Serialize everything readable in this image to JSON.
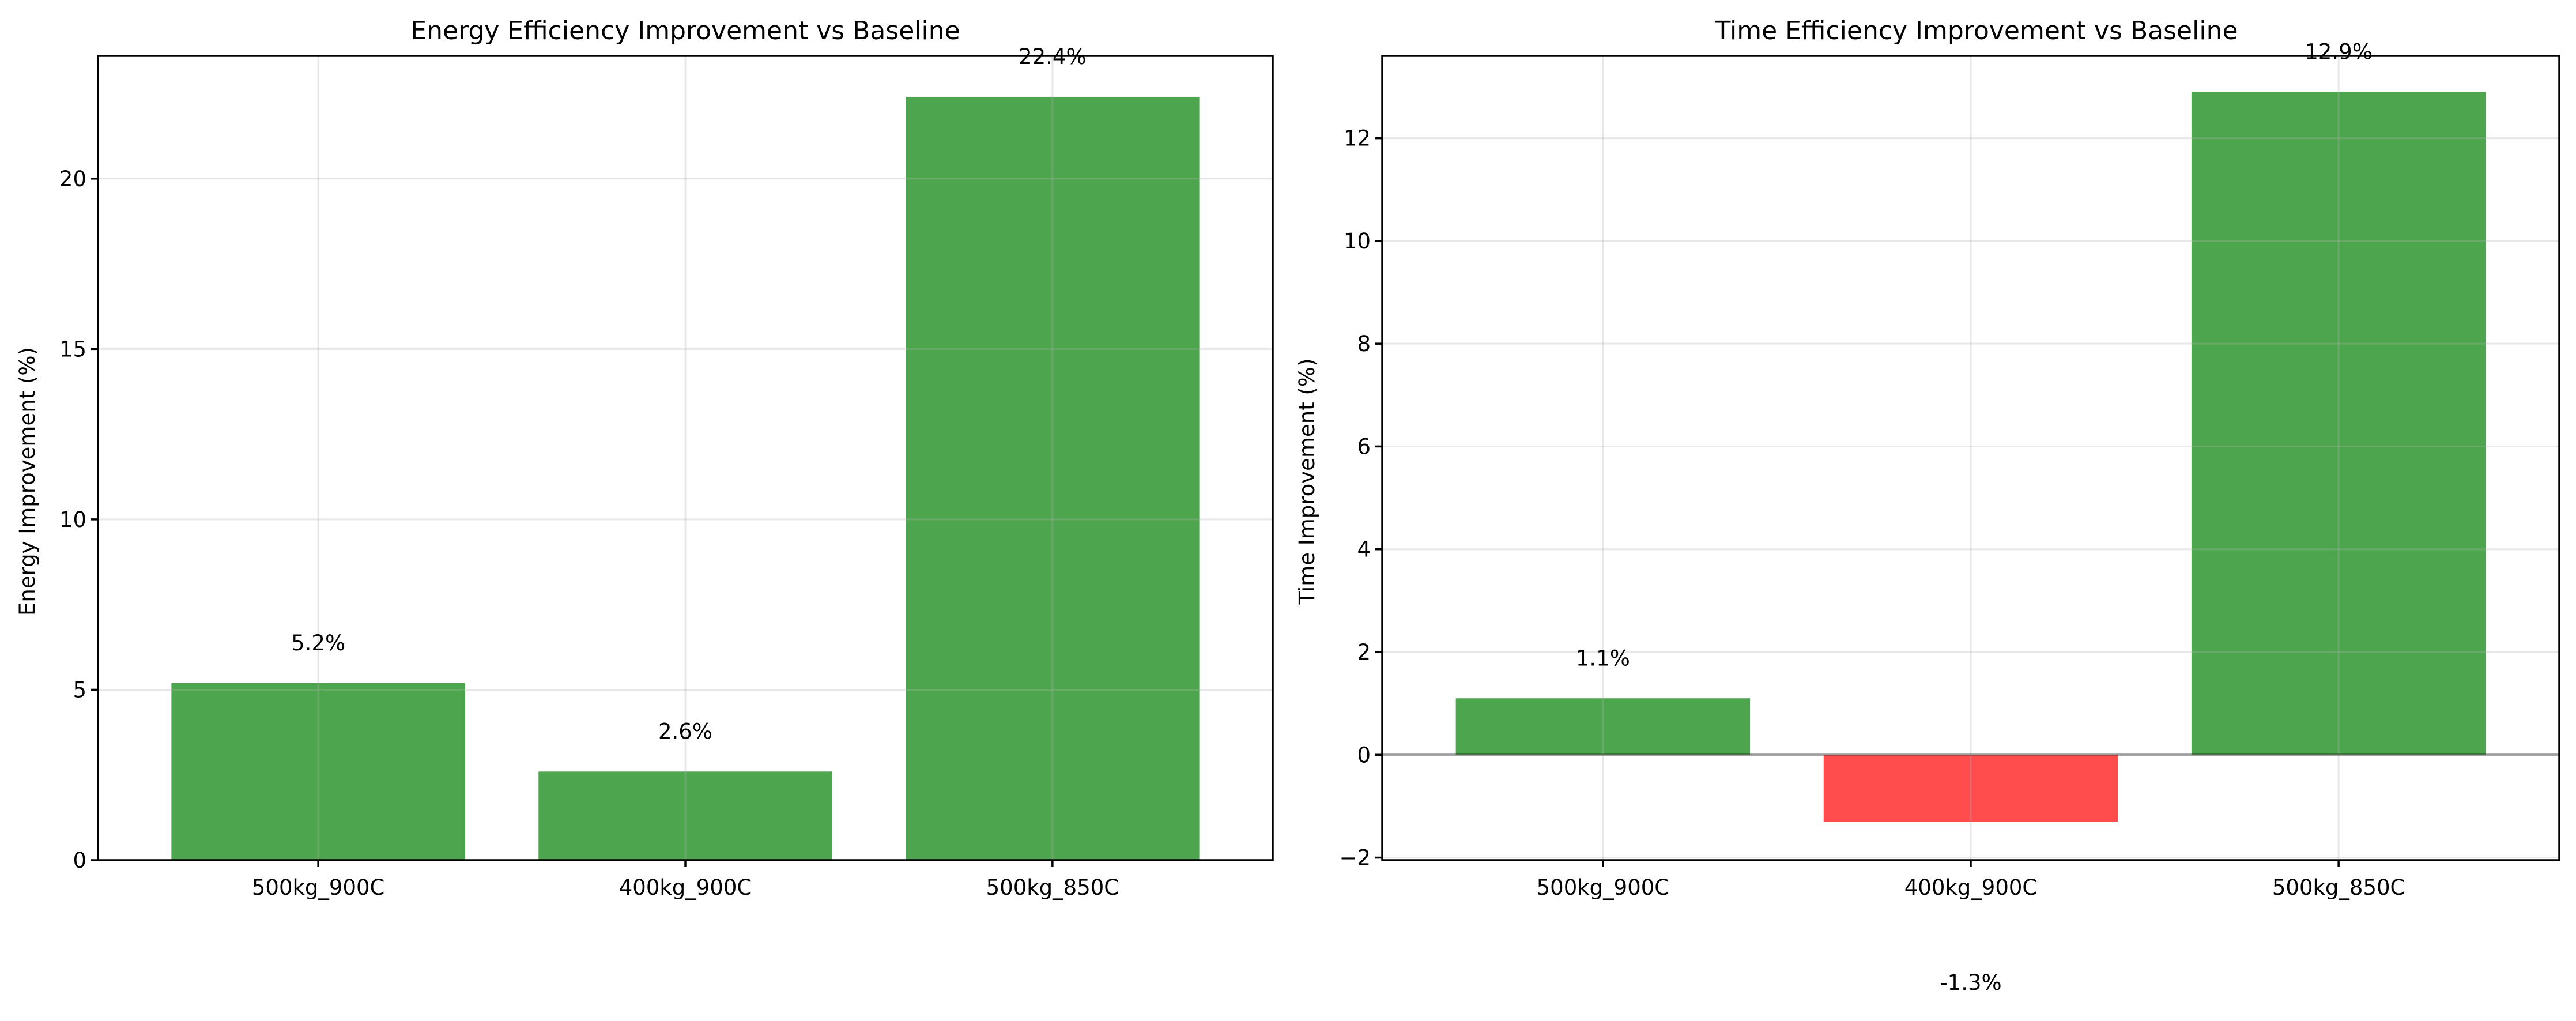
{
  "chart_data": [
    {
      "type": "bar",
      "title": "Energy Efficiency Improvement vs Baseline",
      "xlabel": "",
      "ylabel": "Energy Improvement (%)",
      "categories": [
        "500kg_900C",
        "400kg_900C",
        "500kg_850C"
      ],
      "values": [
        5.2,
        2.6,
        22.4
      ],
      "labels": [
        "5.2%",
        "2.6%",
        "22.4%"
      ],
      "colors": [
        "#4da64d",
        "#4da64d",
        "#4da64d"
      ],
      "ylim": [
        0,
        23.6
      ],
      "yticks": [
        0,
        5,
        10,
        15,
        20
      ],
      "ytick_labels": [
        "0",
        "5",
        "10",
        "15",
        "20"
      ],
      "grid": true,
      "zero_line": false
    },
    {
      "type": "bar",
      "title": "Time Efficiency Improvement vs Baseline",
      "xlabel": "",
      "ylabel": "Time Improvement (%)",
      "categories": [
        "500kg_900C",
        "400kg_900C",
        "500kg_850C"
      ],
      "values": [
        1.1,
        -1.3,
        12.9
      ],
      "labels": [
        "1.1%",
        "-1.3%",
        "12.9%"
      ],
      "colors": [
        "#4da64d",
        "#ff4d4d",
        "#4da64d"
      ],
      "ylim": [
        -2.05,
        13.6
      ],
      "yticks": [
        -2,
        0,
        2,
        4,
        6,
        8,
        10,
        12
      ],
      "ytick_labels": [
        "−2",
        "0",
        "2",
        "4",
        "6",
        "8",
        "10",
        "12"
      ],
      "grid": true,
      "zero_line": true
    }
  ]
}
